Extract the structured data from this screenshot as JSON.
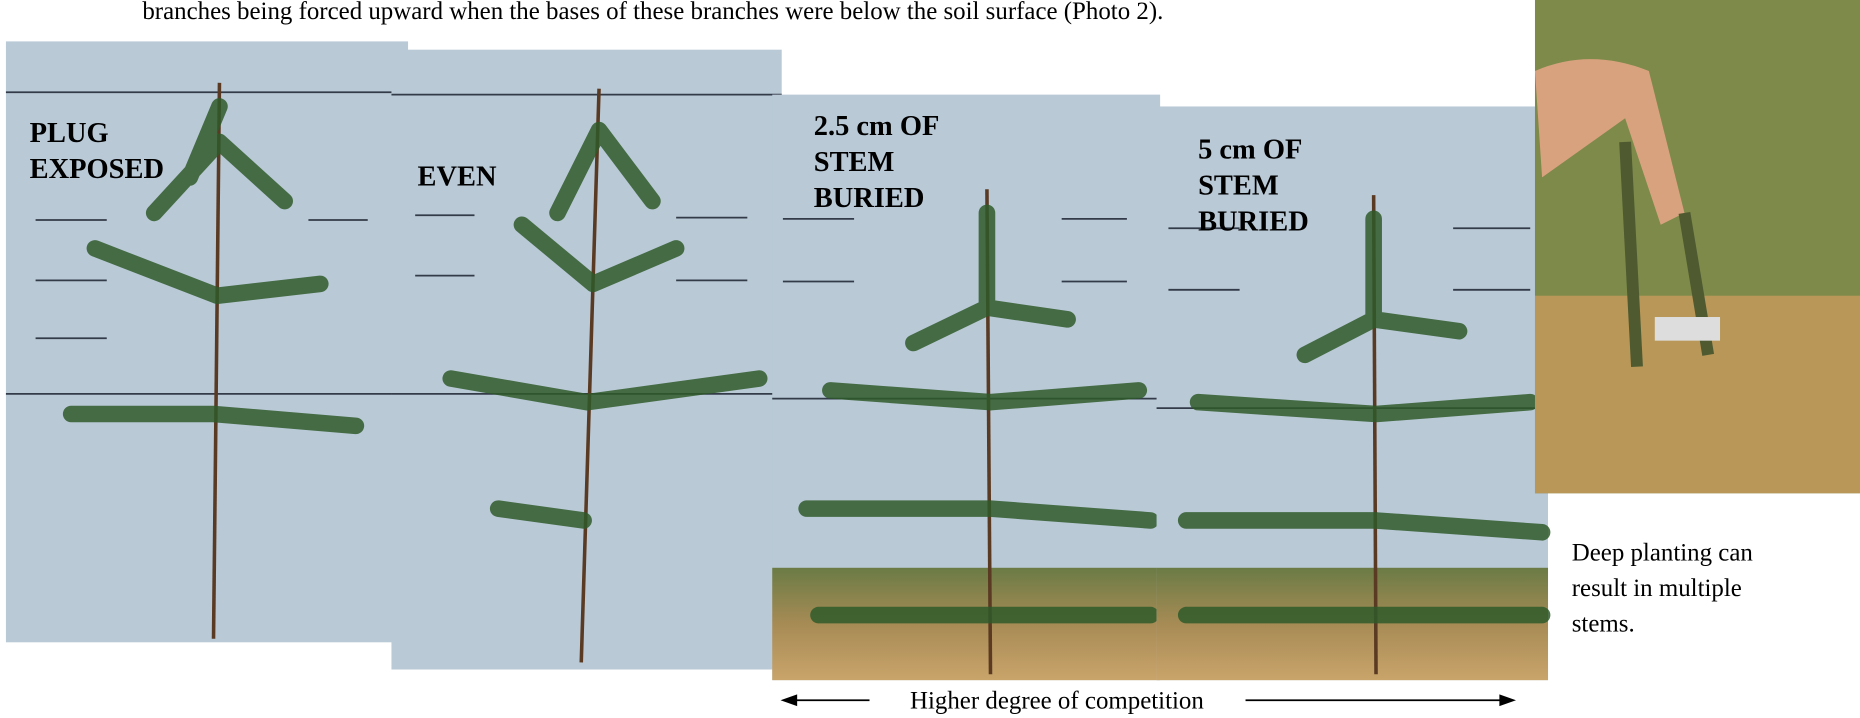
{
  "top_line": "branches being forced upward when the bases of these branches were below the soil surface (Photo 2).",
  "photos": [
    {
      "label_lines": [
        "PLUG",
        "EXPOSED"
      ]
    },
    {
      "label_lines": [
        "EVEN"
      ]
    },
    {
      "label_lines": [
        "2.5 cm OF",
        "STEM",
        "BURIED"
      ]
    },
    {
      "label_lines": [
        "5 cm OF",
        "STEM",
        "BURIED"
      ]
    }
  ],
  "caption_lines": [
    "Deep planting can",
    "result in multiple",
    "stems."
  ],
  "arrow_label": "Higher degree of competition"
}
